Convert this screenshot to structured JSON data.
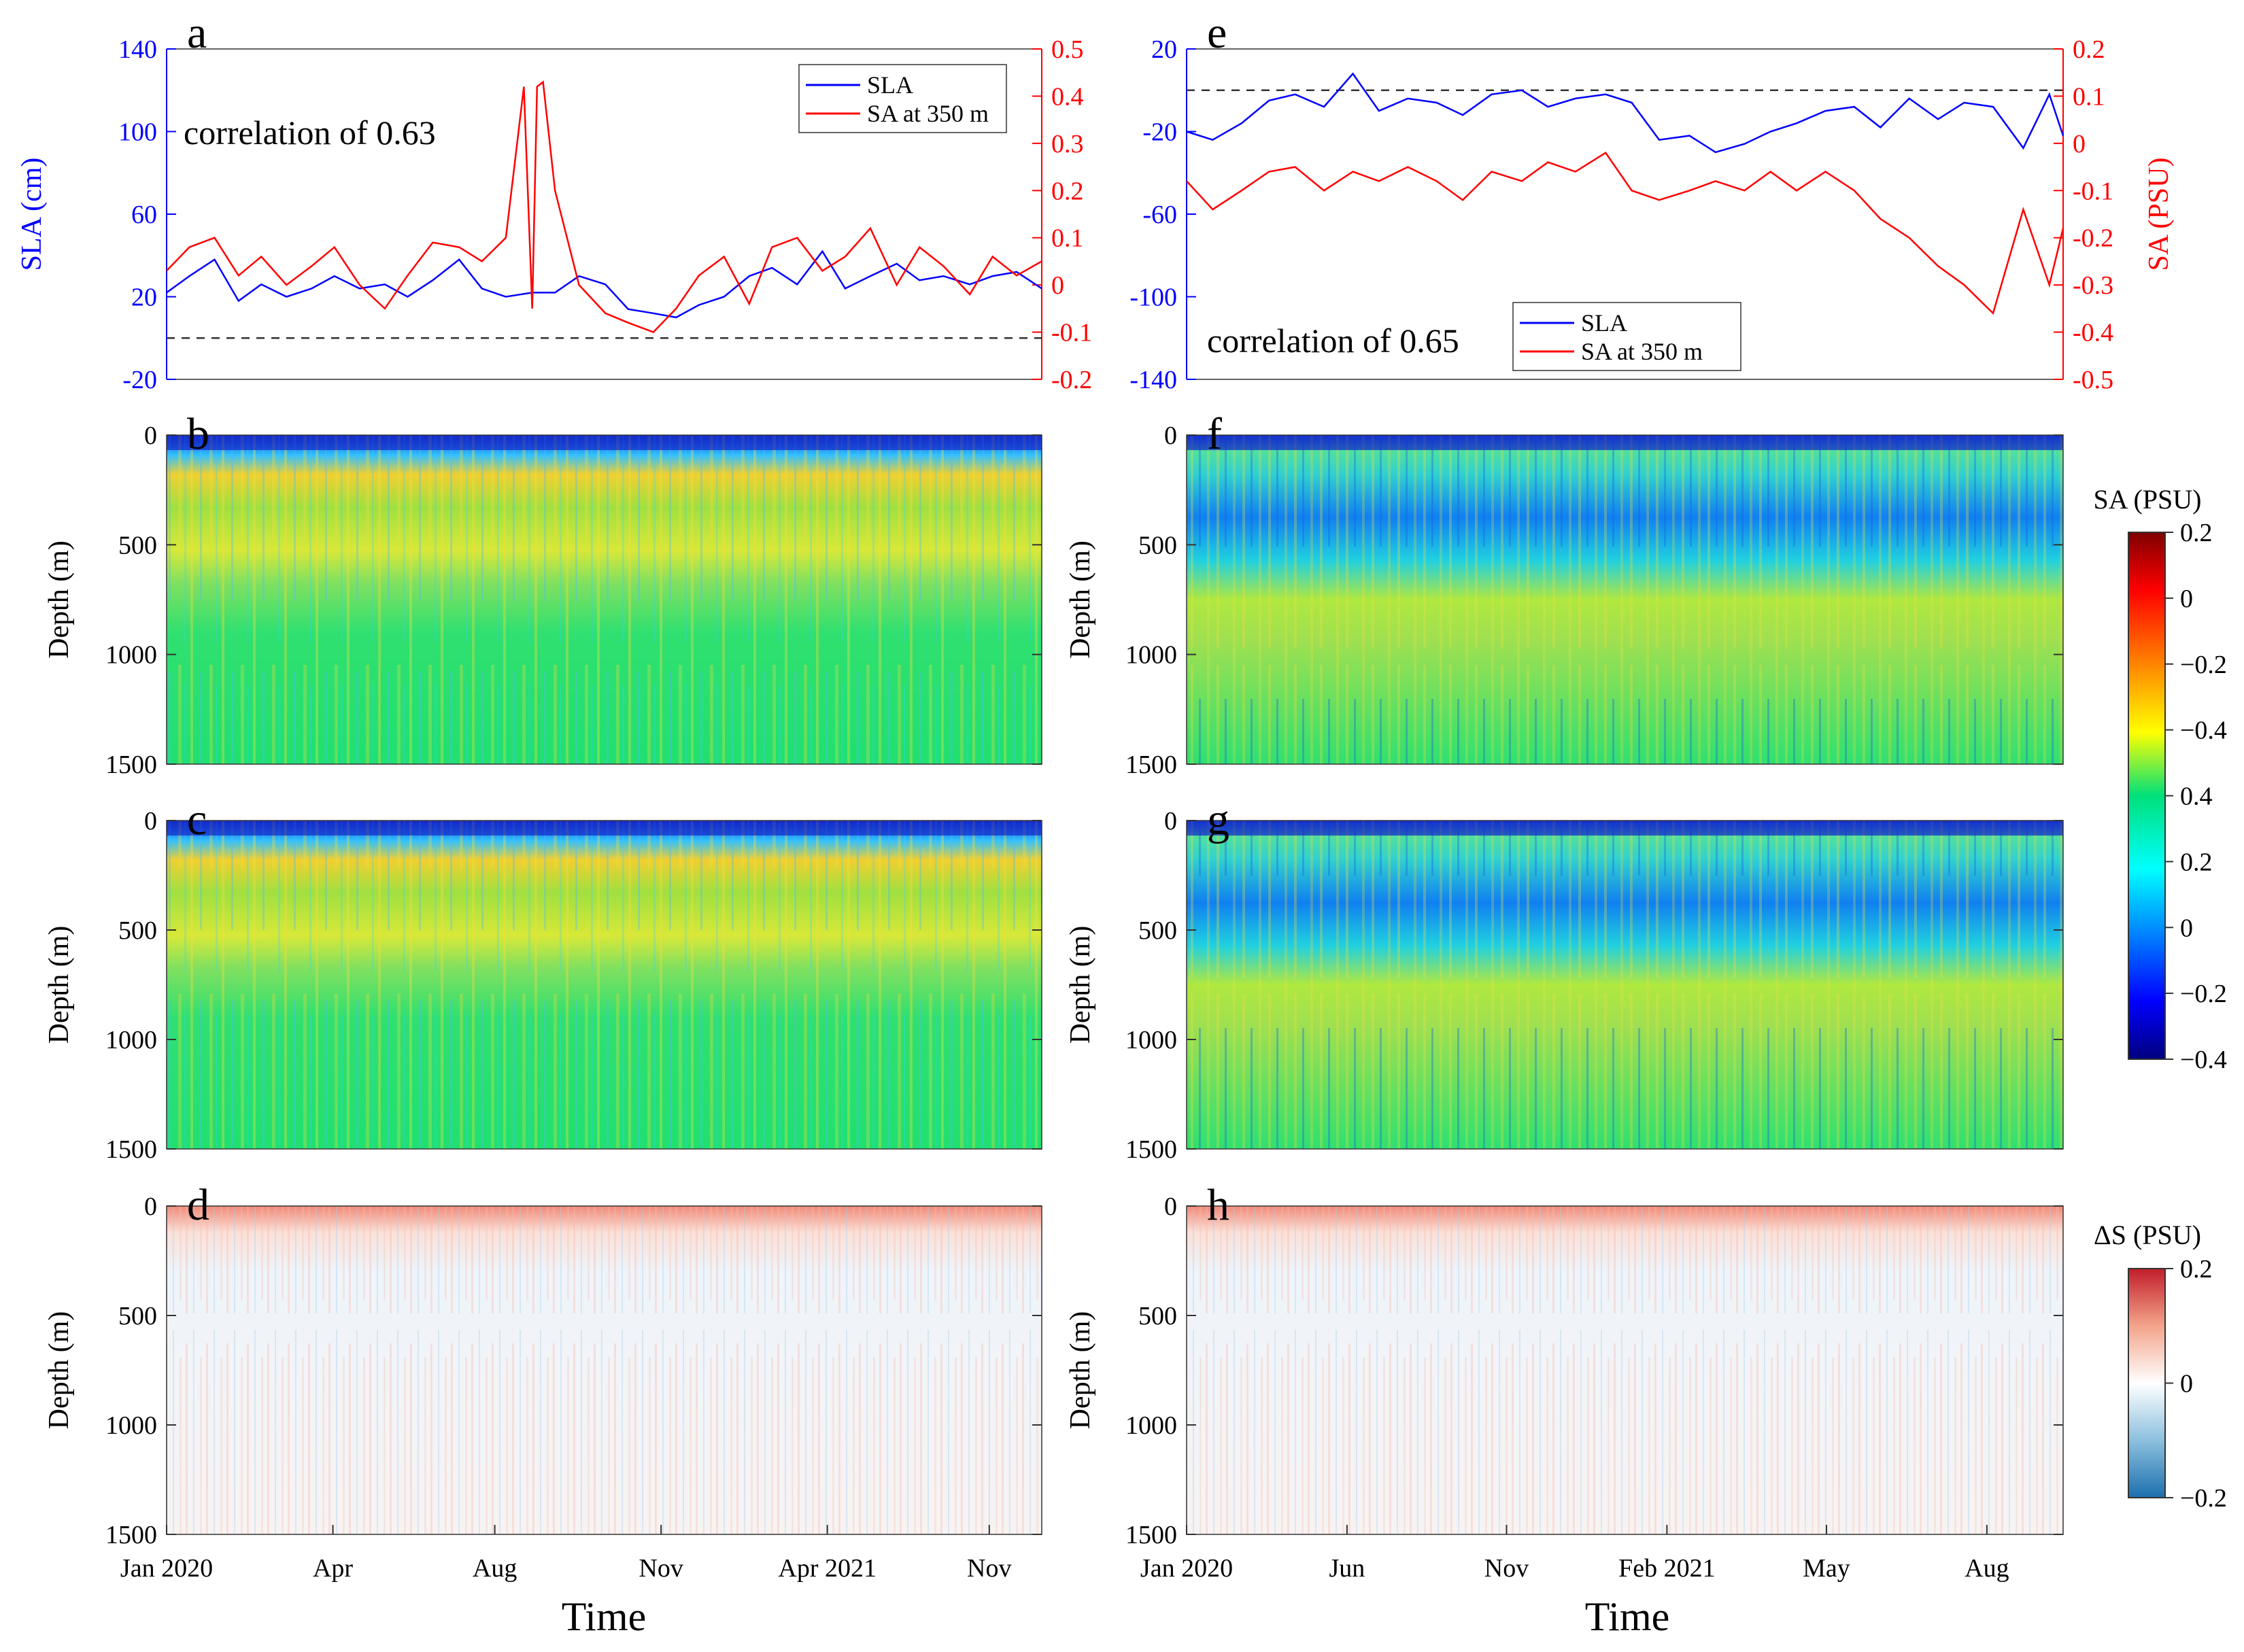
{
  "figure": {
    "x_label": "Time",
    "depth_label": "Depth (m)"
  },
  "colors": {
    "sla": "#0000ff",
    "sa": "#ff0000",
    "axis": "#333333",
    "zero_line": "#333333"
  },
  "colorbars": {
    "sa": {
      "title": "SA (PSU)",
      "ticks": [
        "0.2",
        "0",
        "−0.2",
        "−0.4",
        "0.4",
        "0.2",
        "0",
        "−0.2",
        "−0.4"
      ],
      "colormap": "jet"
    },
    "ds": {
      "title": "ΔS (PSU)",
      "ticks": [
        "0.2",
        "0",
        "−0.2"
      ],
      "colormap": "diverging blue-white-red"
    }
  },
  "chart_data": [
    {
      "id": "a",
      "type": "line",
      "panel_label": "a",
      "annotation": "correlation of 0.63",
      "ylabel_left": "SLA (cm)",
      "ylabel_right": "",
      "ylim_left": [
        -20,
        140
      ],
      "yticks_left": [
        "-20",
        "20",
        "60",
        "100",
        "140"
      ],
      "ylim_right": [
        -0.2,
        0.5
      ],
      "yticks_right": [
        "-0.2",
        "-0.1",
        "0",
        "0.1",
        "0.2",
        "0.3",
        "0.4",
        "0.5"
      ],
      "reference_line_left": 0,
      "legend": {
        "placement": "top-right",
        "entries": [
          "SLA",
          "SA at 350 m"
        ]
      },
      "x_range": [
        "2020-01-01",
        "2021-12-31"
      ],
      "series": [
        {
          "name": "SLA",
          "axis": "left",
          "x": [
            "2020-01-01",
            "2020-01-20",
            "2020-02-10",
            "2020-03-01",
            "2020-03-20",
            "2020-04-10",
            "2020-05-01",
            "2020-05-20",
            "2020-06-10",
            "2020-07-01",
            "2020-07-20",
            "2020-08-10",
            "2020-09-01",
            "2020-09-20",
            "2020-10-10",
            "2020-11-01",
            "2020-11-20",
            "2020-12-10",
            "2021-01-01",
            "2021-01-20",
            "2021-02-10",
            "2021-03-01",
            "2021-03-20",
            "2021-04-10",
            "2021-05-01",
            "2021-05-20",
            "2021-06-10",
            "2021-07-01",
            "2021-07-20",
            "2021-08-10",
            "2021-09-01",
            "2021-09-20",
            "2021-10-10",
            "2021-11-01",
            "2021-11-20",
            "2021-12-10",
            "2021-12-31"
          ],
          "y": [
            22,
            30,
            38,
            18,
            26,
            20,
            24,
            30,
            24,
            26,
            20,
            28,
            38,
            24,
            20,
            22,
            22,
            30,
            26,
            14,
            12,
            10,
            16,
            20,
            30,
            34,
            26,
            42,
            24,
            30,
            36,
            28,
            30,
            26,
            30,
            32,
            24
          ]
        },
        {
          "name": "SA at 350 m",
          "axis": "right",
          "x": [
            "2020-01-01",
            "2020-01-20",
            "2020-02-10",
            "2020-03-01",
            "2020-03-20",
            "2020-04-10",
            "2020-05-01",
            "2020-05-20",
            "2020-06-10",
            "2020-07-01",
            "2020-07-20",
            "2020-08-10",
            "2020-09-01",
            "2020-09-20",
            "2020-10-10",
            "2020-10-25",
            "2020-11-01",
            "2020-11-05",
            "2020-11-10",
            "2020-11-20",
            "2020-12-10",
            "2021-01-01",
            "2021-01-20",
            "2021-02-10",
            "2021-03-01",
            "2021-03-20",
            "2021-04-10",
            "2021-05-01",
            "2021-05-20",
            "2021-06-10",
            "2021-07-01",
            "2021-07-20",
            "2021-08-10",
            "2021-09-01",
            "2021-09-20",
            "2021-10-10",
            "2021-11-01",
            "2021-11-20",
            "2021-12-10",
            "2021-12-31"
          ],
          "y": [
            0.03,
            0.08,
            0.1,
            0.02,
            0.06,
            0.0,
            0.04,
            0.08,
            0.0,
            -0.05,
            0.02,
            0.09,
            0.08,
            0.05,
            0.1,
            0.42,
            -0.05,
            0.42,
            0.43,
            0.2,
            0.0,
            -0.06,
            -0.08,
            -0.1,
            -0.05,
            0.02,
            0.06,
            -0.04,
            0.08,
            0.1,
            0.03,
            0.06,
            0.12,
            0.0,
            0.08,
            0.04,
            -0.02,
            0.06,
            0.02,
            0.05
          ]
        }
      ]
    },
    {
      "id": "e",
      "type": "line",
      "panel_label": "e",
      "annotation": "correlation of 0.65",
      "ylabel_left": "",
      "ylabel_right": "SA (PSU)",
      "ylim_left": [
        -140,
        20
      ],
      "yticks_left": [
        "-140",
        "-100",
        "-60",
        "-20",
        "20"
      ],
      "ylim_right": [
        -0.5,
        0.2
      ],
      "yticks_right": [
        "-0.5",
        "-0.4",
        "-0.3",
        "-0.2",
        "-0.1",
        "0",
        "0.1",
        "0.2"
      ],
      "reference_line_left": 0,
      "legend": {
        "placement": "bottom-center",
        "entries": [
          "SLA",
          "SA at 350 m"
        ]
      },
      "x_range": [
        "2020-01-01",
        "2021-09-30"
      ],
      "series": [
        {
          "name": "SLA",
          "axis": "left",
          "x": [
            "2020-01-01",
            "2020-01-20",
            "2020-02-10",
            "2020-03-01",
            "2020-03-20",
            "2020-04-10",
            "2020-05-01",
            "2020-05-20",
            "2020-06-10",
            "2020-07-01",
            "2020-07-20",
            "2020-08-10",
            "2020-09-01",
            "2020-09-20",
            "2020-10-10",
            "2020-11-01",
            "2020-11-20",
            "2020-12-10",
            "2021-01-01",
            "2021-01-20",
            "2021-02-10",
            "2021-03-01",
            "2021-03-20",
            "2021-04-10",
            "2021-05-01",
            "2021-05-20",
            "2021-06-10",
            "2021-07-01",
            "2021-07-20",
            "2021-08-10",
            "2021-09-01",
            "2021-09-20",
            "2021-09-30"
          ],
          "y": [
            -20,
            -24,
            -16,
            -5,
            -2,
            -8,
            8,
            -10,
            -4,
            -6,
            -12,
            -2,
            0,
            -8,
            -4,
            -2,
            -6,
            -24,
            -22,
            -30,
            -26,
            -20,
            -16,
            -10,
            -8,
            -18,
            -4,
            -14,
            -6,
            -8,
            -28,
            -2,
            -22
          ]
        },
        {
          "name": "SA at 350 m",
          "axis": "right",
          "x": [
            "2020-01-01",
            "2020-01-20",
            "2020-02-10",
            "2020-03-01",
            "2020-03-20",
            "2020-04-10",
            "2020-05-01",
            "2020-05-20",
            "2020-06-10",
            "2020-07-01",
            "2020-07-20",
            "2020-08-10",
            "2020-09-01",
            "2020-09-20",
            "2020-10-10",
            "2020-11-01",
            "2020-11-20",
            "2020-12-10",
            "2021-01-01",
            "2021-01-20",
            "2021-02-10",
            "2021-03-01",
            "2021-03-20",
            "2021-04-10",
            "2021-05-01",
            "2021-05-20",
            "2021-06-10",
            "2021-07-01",
            "2021-07-20",
            "2021-08-10",
            "2021-09-01",
            "2021-09-20",
            "2021-09-30"
          ],
          "y": [
            -0.08,
            -0.14,
            -0.1,
            -0.06,
            -0.05,
            -0.1,
            -0.06,
            -0.08,
            -0.05,
            -0.08,
            -0.12,
            -0.06,
            -0.08,
            -0.04,
            -0.06,
            -0.02,
            -0.1,
            -0.12,
            -0.1,
            -0.08,
            -0.1,
            -0.06,
            -0.1,
            -0.06,
            -0.1,
            -0.16,
            -0.2,
            -0.26,
            -0.3,
            -0.36,
            -0.14,
            -0.3,
            -0.18
          ]
        }
      ]
    },
    {
      "id": "b",
      "type": "heatmap",
      "panel_label": "b",
      "ylabel": "Depth (m)",
      "ylim": [
        1500,
        0
      ],
      "yticks": [
        "0",
        "500",
        "1000",
        "1500"
      ],
      "x_range": [
        "2020-01-01",
        "2021-12-31"
      ],
      "colorbar": "sa"
    },
    {
      "id": "f",
      "type": "heatmap",
      "panel_label": "f",
      "ylabel": "Depth (m)",
      "ylim": [
        1500,
        0
      ],
      "yticks": [
        "0",
        "500",
        "1000",
        "1500"
      ],
      "x_range": [
        "2020-01-01",
        "2021-09-30"
      ],
      "colorbar": "sa"
    },
    {
      "id": "c",
      "type": "heatmap",
      "panel_label": "c",
      "ylabel": "Depth (m)",
      "ylim": [
        1500,
        0
      ],
      "yticks": [
        "0",
        "500",
        "1000",
        "1500"
      ],
      "x_range": [
        "2020-01-01",
        "2021-12-31"
      ],
      "colorbar": "sa"
    },
    {
      "id": "g",
      "type": "heatmap",
      "panel_label": "g",
      "ylabel": "Depth (m)",
      "ylim": [
        1500,
        0
      ],
      "yticks": [
        "0",
        "500",
        "1000",
        "1500"
      ],
      "x_range": [
        "2020-01-01",
        "2021-09-30"
      ],
      "colorbar": "sa"
    },
    {
      "id": "d",
      "type": "heatmap",
      "panel_label": "d",
      "ylabel": "Depth (m)",
      "ylim": [
        1500,
        0
      ],
      "yticks": [
        "0",
        "500",
        "1000",
        "1500"
      ],
      "x_range": [
        "2020-01-01",
        "2021-12-31"
      ],
      "colorbar": "ds",
      "xticks": [
        "Jan 2020",
        "Apr",
        "Aug",
        "Nov",
        "Apr 2021",
        "Nov"
      ]
    },
    {
      "id": "h",
      "type": "heatmap",
      "panel_label": "h",
      "ylabel": "Depth (m)",
      "ylim": [
        1500,
        0
      ],
      "yticks": [
        "0",
        "500",
        "1000",
        "1500"
      ],
      "x_range": [
        "2020-01-01",
        "2021-09-30"
      ],
      "colorbar": "ds",
      "xticks": [
        "Jan 2020",
        "Jun",
        "Nov",
        "Feb 2021",
        "May",
        "Aug"
      ]
    }
  ]
}
